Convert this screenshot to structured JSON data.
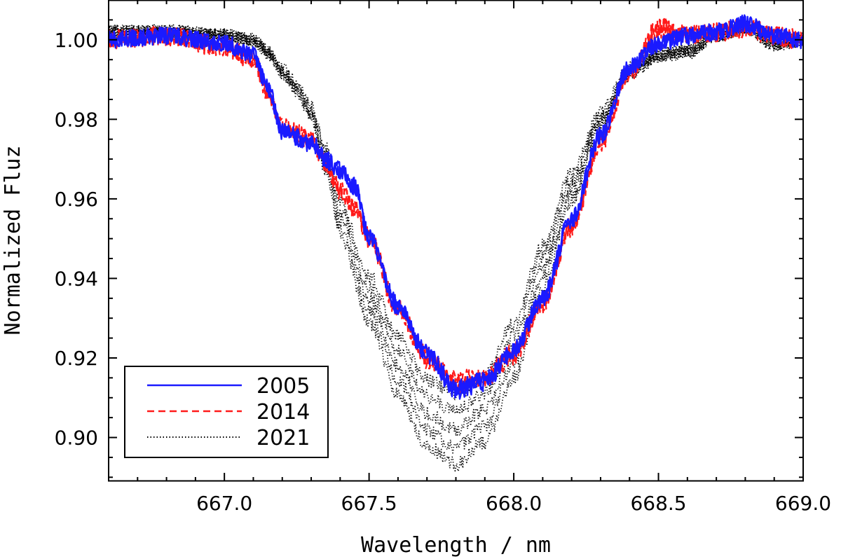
{
  "chart_data": {
    "type": "line",
    "title": "",
    "xlabel": "Wavelength / nm",
    "ylabel": "Normalized Fluz",
    "xlim": [
      666.6,
      669.0
    ],
    "ylim": [
      0.889,
      1.01
    ],
    "xticks": [
      "667.0",
      "667.5",
      "668.0",
      "668.5",
      "669.0"
    ],
    "xtick_values": [
      667.0,
      667.5,
      668.0,
      668.5,
      669.0
    ],
    "yticks": [
      "0.90",
      "0.92",
      "0.94",
      "0.96",
      "0.98",
      "1.00"
    ],
    "ytick_values": [
      0.9,
      0.92,
      0.94,
      0.96,
      0.98,
      1.0
    ],
    "grid": false,
    "legend_position": "bottom-left",
    "series": [
      {
        "name": "2005",
        "color": "#1a1aff",
        "dash": "solid",
        "x": [
          666.6,
          666.8,
          667.0,
          667.1,
          667.15,
          667.2,
          667.3,
          667.35,
          667.4,
          667.45,
          667.5,
          667.6,
          667.7,
          667.8,
          667.9,
          668.0,
          668.1,
          668.2,
          668.3,
          668.4,
          668.5,
          668.6,
          668.7,
          668.8,
          668.9,
          669.0
        ],
        "y": [
          1.0,
          1.001,
          0.999,
          0.996,
          0.988,
          0.977,
          0.974,
          0.97,
          0.967,
          0.963,
          0.95,
          0.933,
          0.921,
          0.912,
          0.914,
          0.922,
          0.935,
          0.955,
          0.976,
          0.993,
          0.999,
          1.001,
          1.002,
          1.004,
          1.001,
          1.0
        ]
      },
      {
        "name": "2014",
        "color": "#ff1a1a",
        "dash": "dashed",
        "x": [
          666.6,
          666.8,
          667.0,
          667.1,
          667.15,
          667.2,
          667.3,
          667.35,
          667.4,
          667.45,
          667.5,
          667.6,
          667.7,
          667.8,
          667.9,
          668.0,
          668.1,
          668.2,
          668.3,
          668.4,
          668.5,
          668.6,
          668.7,
          668.8,
          668.9,
          669.0
        ],
        "y": [
          1.0,
          1.001,
          0.998,
          0.995,
          0.987,
          0.978,
          0.975,
          0.969,
          0.962,
          0.958,
          0.95,
          0.932,
          0.92,
          0.914,
          0.915,
          0.921,
          0.934,
          0.953,
          0.974,
          0.992,
          1.003,
          1.001,
          1.002,
          1.003,
          1.001,
          1.0
        ]
      },
      {
        "name": "2021",
        "color": "#000000",
        "dash": "dotted",
        "x": [
          666.6,
          666.8,
          667.0,
          667.1,
          667.15,
          667.2,
          667.25,
          667.3,
          667.35,
          667.4,
          667.5,
          667.6,
          667.7,
          667.8,
          667.9,
          668.0,
          668.1,
          668.2,
          668.3,
          668.4,
          668.5,
          668.6,
          668.7,
          668.8,
          668.9,
          669.0
        ],
        "y": [
          1.002,
          1.002,
          1.001,
          1.0,
          0.997,
          0.992,
          0.988,
          0.982,
          0.97,
          0.955,
          0.935,
          0.918,
          0.906,
          0.902,
          0.907,
          0.922,
          0.943,
          0.963,
          0.98,
          0.992,
          0.996,
          0.997,
          1.001,
          1.003,
          0.999,
          1.0
        ]
      }
    ]
  }
}
